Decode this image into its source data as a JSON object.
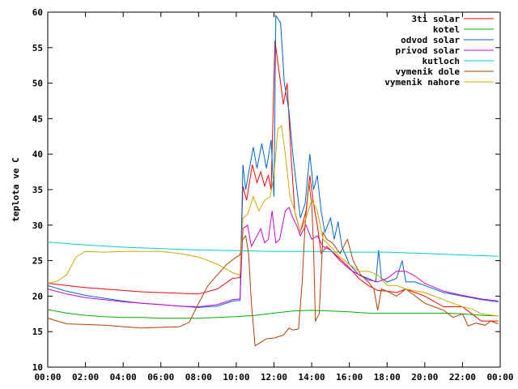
{
  "chart_data": {
    "type": "line",
    "title": "",
    "xlabel": "",
    "ylabel": "teplota ve C",
    "xlim": [
      0,
      24
    ],
    "ylim": [
      10,
      60
    ],
    "grid": false,
    "legend_position": "top-right",
    "x_ticks": [
      "00:00",
      "02:00",
      "04:00",
      "06:00",
      "08:00",
      "10:00",
      "12:00",
      "14:00",
      "16:00",
      "18:00",
      "20:00",
      "22:00",
      "00:00"
    ],
    "y_ticks": [
      10,
      15,
      20,
      25,
      30,
      35,
      40,
      45,
      50,
      55,
      60
    ],
    "series": [
      {
        "name": "3ti solar",
        "color": "#ff0000",
        "points": [
          [
            0,
            21.8
          ],
          [
            1,
            21.5
          ],
          [
            2,
            21.2
          ],
          [
            3,
            21.0
          ],
          [
            4,
            20.8
          ],
          [
            5,
            20.6
          ],
          [
            6,
            20.5
          ],
          [
            7,
            20.4
          ],
          [
            8,
            20.3
          ],
          [
            9,
            21.0
          ],
          [
            9.8,
            22.5
          ],
          [
            10.2,
            22.6
          ],
          [
            10.35,
            35.5
          ],
          [
            10.55,
            33.5
          ],
          [
            10.85,
            38.5
          ],
          [
            11.1,
            36
          ],
          [
            11.3,
            37.5
          ],
          [
            11.5,
            35.5
          ],
          [
            11.7,
            37
          ],
          [
            11.85,
            35
          ],
          [
            12.05,
            56
          ],
          [
            12.3,
            51
          ],
          [
            12.5,
            47
          ],
          [
            12.7,
            50
          ],
          [
            12.9,
            40
          ],
          [
            13.1,
            32
          ],
          [
            13.4,
            29
          ],
          [
            13.7,
            32
          ],
          [
            13.9,
            37
          ],
          [
            14.1,
            33
          ],
          [
            14.3,
            30
          ],
          [
            14.5,
            26
          ],
          [
            14.8,
            27
          ],
          [
            15.2,
            26
          ],
          [
            15.6,
            25
          ],
          [
            16,
            24
          ],
          [
            16.5,
            22.5
          ],
          [
            17,
            21.5
          ],
          [
            17.5,
            20.8
          ],
          [
            18,
            20.7
          ],
          [
            18.5,
            20.5
          ],
          [
            19,
            21
          ],
          [
            19.5,
            20.5
          ],
          [
            20,
            20
          ],
          [
            21,
            18.5
          ],
          [
            22,
            18.5
          ],
          [
            22.5,
            17.5
          ],
          [
            23,
            16.5
          ],
          [
            23.9,
            16.5
          ]
        ]
      },
      {
        "name": "kotel",
        "color": "#00b000",
        "points": [
          [
            0,
            18.1
          ],
          [
            1,
            17.6
          ],
          [
            2,
            17.3
          ],
          [
            3,
            17.1
          ],
          [
            4,
            17.0
          ],
          [
            5,
            17.0
          ],
          [
            6,
            16.9
          ],
          [
            7,
            16.9
          ],
          [
            8,
            16.9
          ],
          [
            9,
            17.0
          ],
          [
            10,
            17.1
          ],
          [
            11,
            17.3
          ],
          [
            12,
            17.6
          ],
          [
            13,
            17.9
          ],
          [
            14,
            18.0
          ],
          [
            15,
            17.9
          ],
          [
            16,
            17.8
          ],
          [
            17,
            17.6
          ],
          [
            18,
            17.6
          ],
          [
            19,
            17.6
          ],
          [
            20,
            17.6
          ],
          [
            21,
            17.6
          ],
          [
            22,
            17.5
          ],
          [
            23,
            17.3
          ],
          [
            23.9,
            17.2
          ]
        ]
      },
      {
        "name": "odvod solar",
        "color": "#0066cc",
        "points": [
          [
            0,
            21.5
          ],
          [
            1,
            20.7
          ],
          [
            2,
            20.1
          ],
          [
            3,
            19.7
          ],
          [
            4,
            19.3
          ],
          [
            5,
            19.0
          ],
          [
            6,
            18.8
          ],
          [
            7,
            18.6
          ],
          [
            8,
            18.4
          ],
          [
            9,
            18.6
          ],
          [
            9.8,
            19.3
          ],
          [
            10.2,
            19.4
          ],
          [
            10.35,
            38.5
          ],
          [
            10.5,
            35
          ],
          [
            10.9,
            41
          ],
          [
            11.1,
            38
          ],
          [
            11.35,
            41.5
          ],
          [
            11.6,
            38
          ],
          [
            11.85,
            42
          ],
          [
            12.0,
            34
          ],
          [
            12.1,
            59.5
          ],
          [
            12.35,
            58.5
          ],
          [
            12.55,
            50
          ],
          [
            12.8,
            46
          ],
          [
            13.0,
            40
          ],
          [
            13.2,
            35.5
          ],
          [
            13.4,
            31
          ],
          [
            13.65,
            33
          ],
          [
            13.9,
            40
          ],
          [
            14.1,
            35
          ],
          [
            14.3,
            37
          ],
          [
            14.5,
            32
          ],
          [
            14.7,
            29
          ],
          [
            15.0,
            31
          ],
          [
            15.2,
            28
          ],
          [
            15.4,
            30.5
          ],
          [
            15.6,
            27
          ],
          [
            16.0,
            24.5
          ],
          [
            16.5,
            23
          ],
          [
            17.0,
            22.5
          ],
          [
            17.4,
            22
          ],
          [
            17.55,
            26.5
          ],
          [
            17.7,
            22.5
          ],
          [
            18,
            22
          ],
          [
            18.5,
            22.5
          ],
          [
            18.8,
            25
          ],
          [
            19,
            22
          ],
          [
            19.5,
            22
          ],
          [
            20,
            21.5
          ],
          [
            21,
            20.5
          ],
          [
            22,
            20
          ],
          [
            23,
            19.5
          ],
          [
            23.9,
            19.2
          ]
        ]
      },
      {
        "name": "privod solar",
        "color": "#cc00cc",
        "points": [
          [
            0,
            21.0
          ],
          [
            1,
            20.3
          ],
          [
            2,
            19.8
          ],
          [
            3,
            19.5
          ],
          [
            4,
            19.2
          ],
          [
            5,
            19.0
          ],
          [
            6,
            18.8
          ],
          [
            7,
            18.6
          ],
          [
            8,
            18.5
          ],
          [
            9,
            18.8
          ],
          [
            9.8,
            19.5
          ],
          [
            10.2,
            19.6
          ],
          [
            10.35,
            29.5
          ],
          [
            10.6,
            30
          ],
          [
            10.8,
            27
          ],
          [
            11.0,
            28
          ],
          [
            11.3,
            29.5
          ],
          [
            11.5,
            27.5
          ],
          [
            11.7,
            28
          ],
          [
            11.9,
            32
          ],
          [
            12.1,
            27.5
          ],
          [
            12.3,
            28
          ],
          [
            12.6,
            32
          ],
          [
            12.8,
            32.5
          ],
          [
            13.0,
            31
          ],
          [
            13.2,
            30
          ],
          [
            13.4,
            28.5
          ],
          [
            13.7,
            30
          ],
          [
            14.0,
            28
          ],
          [
            14.3,
            28.5
          ],
          [
            14.6,
            27
          ],
          [
            15.0,
            26.5
          ],
          [
            15.5,
            25
          ],
          [
            16,
            23.8
          ],
          [
            16.5,
            23
          ],
          [
            17,
            22.3
          ],
          [
            17.5,
            22
          ],
          [
            18,
            22.5
          ],
          [
            18.5,
            23.5
          ],
          [
            19,
            23.5
          ],
          [
            19.5,
            22.8
          ],
          [
            20,
            21.8
          ],
          [
            21,
            20.7
          ],
          [
            22,
            20.1
          ],
          [
            23,
            19.6
          ],
          [
            23.9,
            19.3
          ]
        ]
      },
      {
        "name": "kutloch",
        "color": "#00cccc",
        "points": [
          [
            0,
            27.6
          ],
          [
            2,
            27.2
          ],
          [
            4,
            26.9
          ],
          [
            6,
            26.7
          ],
          [
            8,
            26.5
          ],
          [
            10,
            26.4
          ],
          [
            12,
            26.3
          ],
          [
            14,
            26.3
          ],
          [
            16,
            26.2
          ],
          [
            18,
            26.2
          ],
          [
            20,
            26.0
          ],
          [
            22,
            25.8
          ],
          [
            23.9,
            25.6
          ]
        ]
      },
      {
        "name": "vymenik dole",
        "color": "#b04000",
        "points": [
          [
            0,
            16.9
          ],
          [
            0.5,
            16.5
          ],
          [
            1,
            16.1
          ],
          [
            2,
            16.0
          ],
          [
            3,
            15.9
          ],
          [
            4,
            15.7
          ],
          [
            5,
            15.5
          ],
          [
            6,
            15.6
          ],
          [
            7,
            15.7
          ],
          [
            7.5,
            16.3
          ],
          [
            8,
            19
          ],
          [
            8.5,
            21.5
          ],
          [
            9,
            23
          ],
          [
            9.5,
            24.5
          ],
          [
            10,
            25.5
          ],
          [
            10.2,
            25.8
          ],
          [
            10.35,
            28
          ],
          [
            10.5,
            28.5
          ],
          [
            10.65,
            26
          ],
          [
            10.8,
            19
          ],
          [
            11.0,
            13
          ],
          [
            11.3,
            13.5
          ],
          [
            11.6,
            14
          ],
          [
            12.0,
            14.1
          ],
          [
            12.5,
            14.5
          ],
          [
            12.8,
            15.5
          ],
          [
            13.0,
            15.2
          ],
          [
            13.3,
            15.4
          ],
          [
            13.5,
            22
          ],
          [
            13.65,
            30
          ],
          [
            13.85,
            36
          ],
          [
            14.0,
            33
          ],
          [
            14.1,
            27
          ],
          [
            14.2,
            16.5
          ],
          [
            14.4,
            17.5
          ],
          [
            14.6,
            29
          ],
          [
            14.8,
            28
          ],
          [
            15.1,
            27.5
          ],
          [
            15.5,
            26
          ],
          [
            15.9,
            28
          ],
          [
            16.2,
            25
          ],
          [
            16.6,
            23
          ],
          [
            17,
            22
          ],
          [
            17.3,
            21
          ],
          [
            17.5,
            18
          ],
          [
            17.7,
            21
          ],
          [
            18,
            20.7
          ],
          [
            18.5,
            20
          ],
          [
            19,
            21
          ],
          [
            19.5,
            20
          ],
          [
            20,
            19
          ],
          [
            20.5,
            18.5
          ],
          [
            21,
            18
          ],
          [
            21.5,
            17
          ],
          [
            22,
            17.5
          ],
          [
            22.3,
            15.8
          ],
          [
            22.7,
            16.2
          ],
          [
            23.2,
            15.9
          ],
          [
            23.5,
            16.5
          ],
          [
            23.9,
            16.1
          ]
        ]
      },
      {
        "name": "vymenik nahore",
        "color": "#ccaa00",
        "points": [
          [
            0,
            21.8
          ],
          [
            0.5,
            22.1
          ],
          [
            1,
            23
          ],
          [
            1.5,
            25.5
          ],
          [
            2,
            26.3
          ],
          [
            3,
            26.2
          ],
          [
            4,
            26.3
          ],
          [
            5,
            26.3
          ],
          [
            6,
            26.3
          ],
          [
            7,
            26
          ],
          [
            8,
            25.5
          ],
          [
            9,
            24.5
          ],
          [
            9.8,
            23.3
          ],
          [
            10.2,
            23.0
          ],
          [
            10.35,
            31
          ],
          [
            10.6,
            31.5
          ],
          [
            10.9,
            34
          ],
          [
            11.2,
            32
          ],
          [
            11.5,
            33.5
          ],
          [
            11.8,
            34
          ],
          [
            12.0,
            37
          ],
          [
            12.2,
            43.5
          ],
          [
            12.4,
            44
          ],
          [
            12.6,
            40
          ],
          [
            12.85,
            34
          ],
          [
            13.1,
            32
          ],
          [
            13.4,
            29
          ],
          [
            13.7,
            31
          ],
          [
            14.0,
            33.5
          ],
          [
            14.3,
            32
          ],
          [
            14.6,
            28
          ],
          [
            15.0,
            27
          ],
          [
            15.5,
            25.5
          ],
          [
            16,
            24.5
          ],
          [
            16.5,
            23.5
          ],
          [
            17,
            23.5
          ],
          [
            17.5,
            23
          ],
          [
            18,
            21.5
          ],
          [
            18.5,
            21.5
          ],
          [
            19,
            21
          ],
          [
            20,
            20.5
          ],
          [
            21,
            19.5
          ],
          [
            22,
            18.5
          ],
          [
            22.5,
            18.2
          ],
          [
            23,
            17.5
          ],
          [
            23.9,
            17.2
          ]
        ]
      }
    ]
  }
}
